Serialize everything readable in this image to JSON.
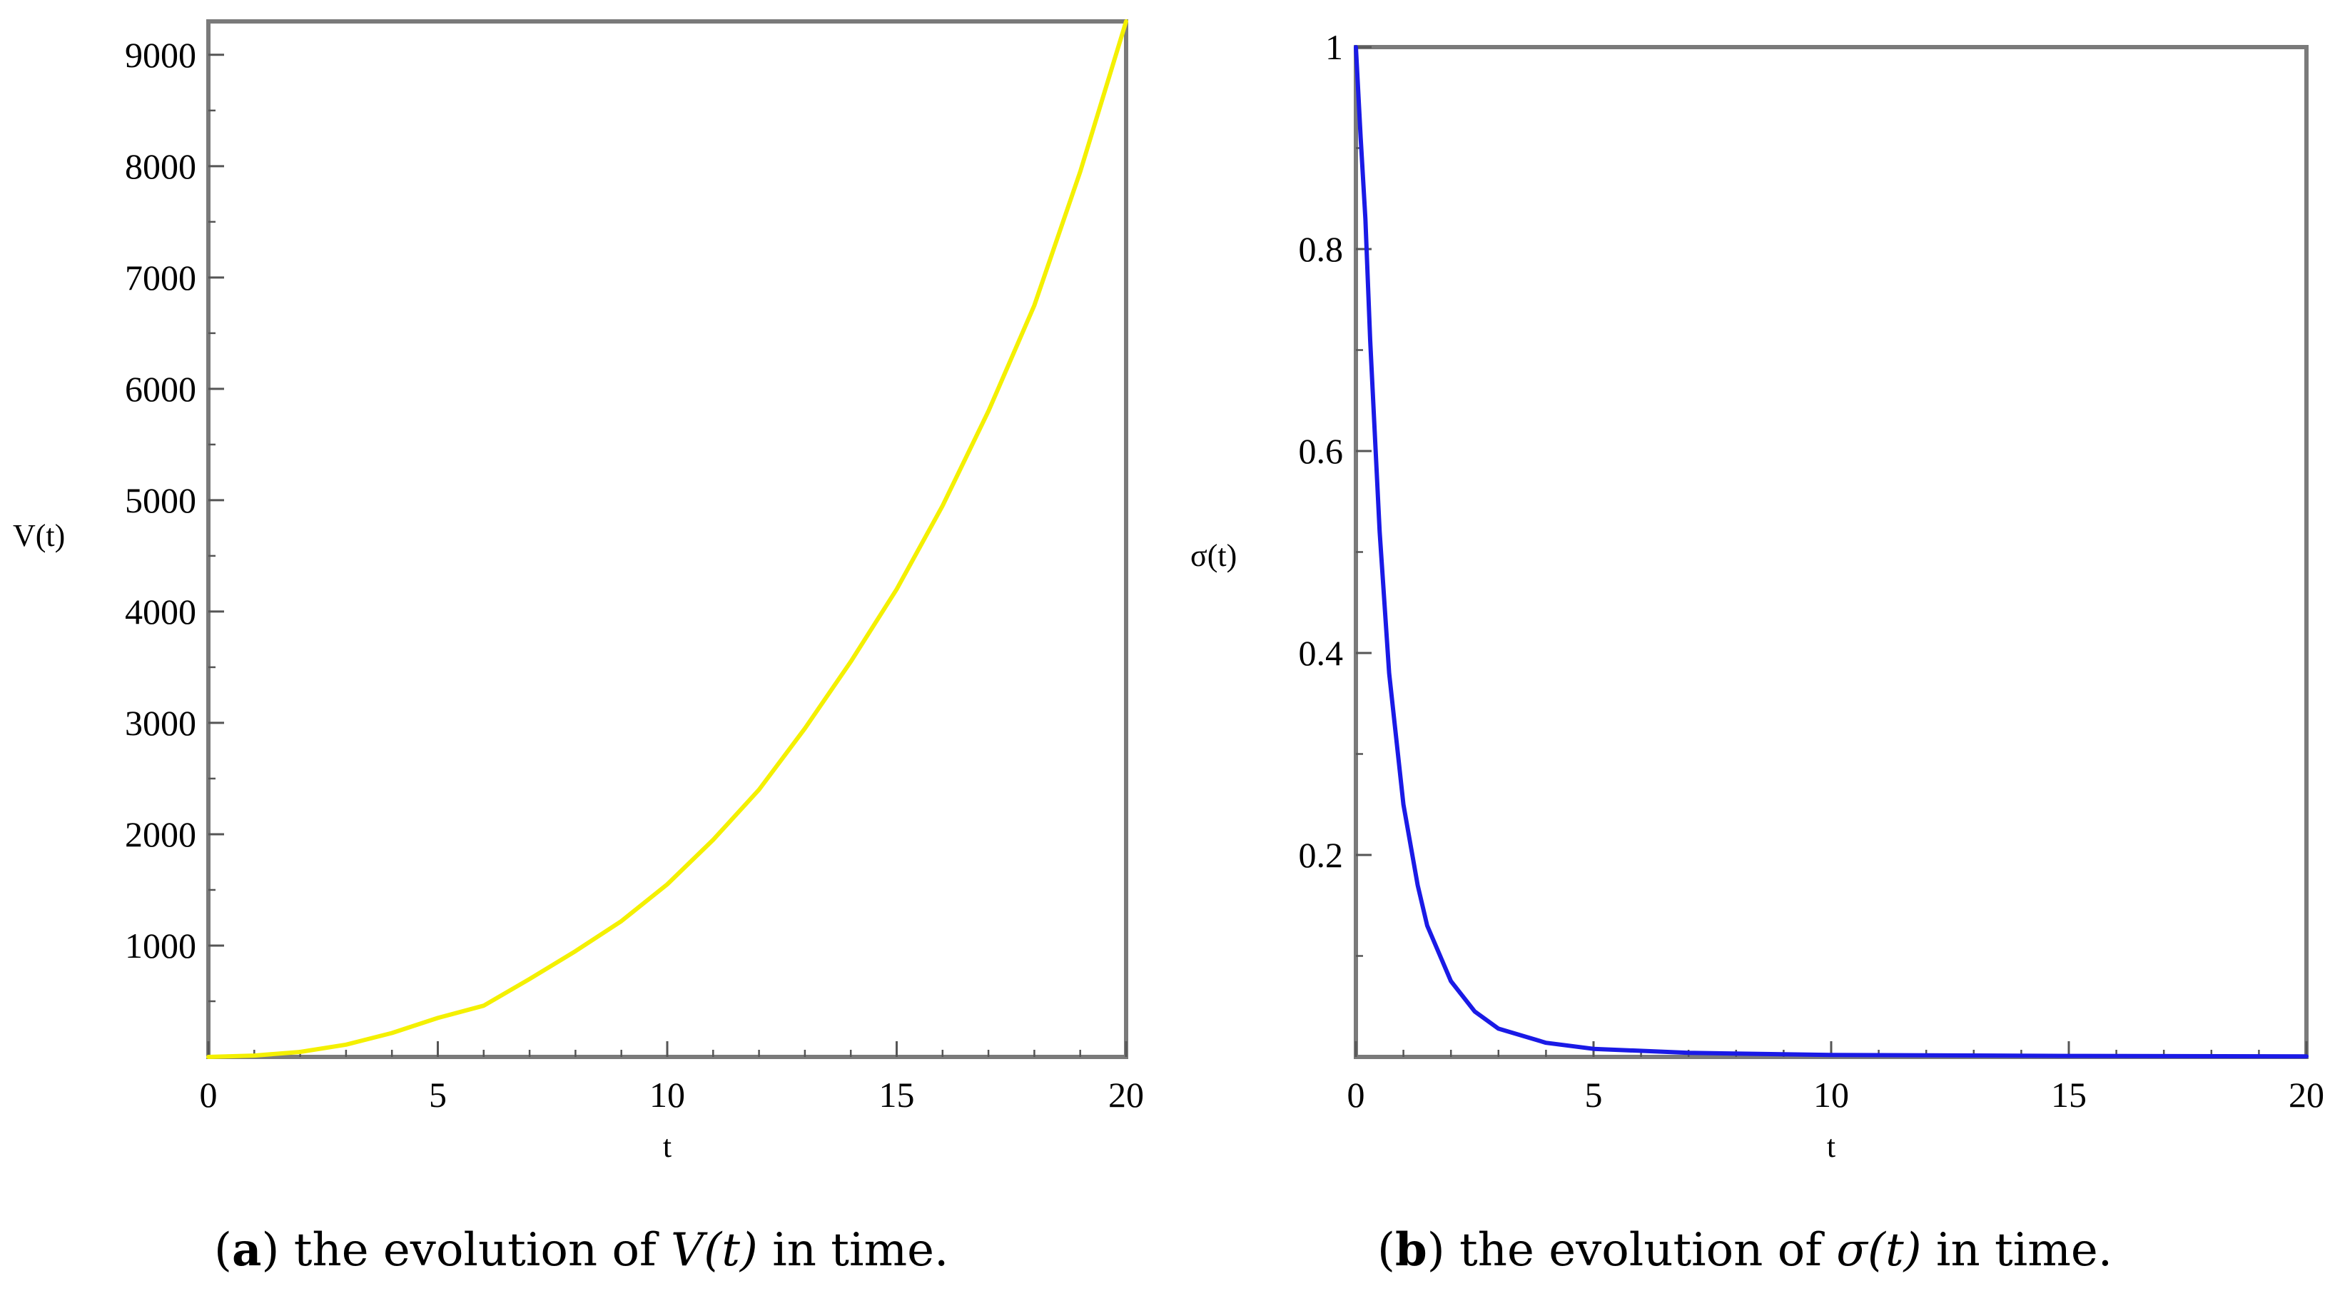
{
  "chart_data": [
    {
      "id": "a",
      "type": "line",
      "xlabel": "t",
      "ylabel": "V(t)",
      "xlim": [
        0,
        20
      ],
      "ylim": [
        0,
        9300
      ],
      "xticks": [
        0,
        5,
        10,
        15,
        20
      ],
      "xtick_labels": [
        "0",
        "5",
        "10",
        "15",
        "20"
      ],
      "yticks": [
        1000,
        2000,
        3000,
        4000,
        5000,
        6000,
        7000,
        8000,
        9000
      ],
      "ytick_labels": [
        "1000",
        "2000",
        "3000",
        "4000",
        "5000",
        "6000",
        "7000",
        "8000",
        "9000"
      ],
      "series": [
        {
          "name": "V(t)",
          "color": "#f4f000",
          "x": [
            0,
            1,
            2,
            3,
            4,
            5,
            6,
            7,
            8,
            9,
            10,
            11,
            12,
            13,
            14,
            15,
            16,
            17,
            18,
            19,
            20
          ],
          "y": [
            0,
            12,
            45,
            110,
            215,
            350,
            460,
            700,
            950,
            1220,
            1550,
            1950,
            2400,
            2950,
            3550,
            4200,
            4950,
            5800,
            6750,
            7950,
            9300
          ]
        }
      ],
      "caption": {
        "tag": "a",
        "prefix": "the evolution of ",
        "symbol": "V",
        "arg": "(t)",
        "suffix": " in time."
      }
    },
    {
      "id": "b",
      "type": "line",
      "xlabel": "t",
      "ylabel": "σ(t)",
      "xlim": [
        0,
        20
      ],
      "ylim": [
        0,
        1
      ],
      "xticks": [
        0,
        5,
        10,
        15,
        20
      ],
      "xtick_labels": [
        "0",
        "5",
        "10",
        "15",
        "20"
      ],
      "yticks": [
        0.2,
        0.4,
        0.6,
        0.8,
        1
      ],
      "ytick_labels": [
        "0.2",
        "0.4",
        "0.6",
        "0.8",
        "1"
      ],
      "series": [
        {
          "name": "σ(t)",
          "color": "#1a1ae6",
          "x": [
            0,
            0.1,
            0.2,
            0.3,
            0.5,
            0.7,
            1,
            1.3,
            1.5,
            2,
            2.5,
            3,
            4,
            5,
            7,
            10,
            15,
            20
          ],
          "y": [
            1,
            0.91,
            0.83,
            0.71,
            0.52,
            0.38,
            0.25,
            0.17,
            0.13,
            0.075,
            0.045,
            0.028,
            0.014,
            0.008,
            0.004,
            0.002,
            0.001,
            0.0005
          ]
        }
      ],
      "caption": {
        "tag": "b",
        "prefix": "the evolution of ",
        "symbol": "σ",
        "arg": "(t)",
        "suffix": " in time."
      }
    }
  ]
}
